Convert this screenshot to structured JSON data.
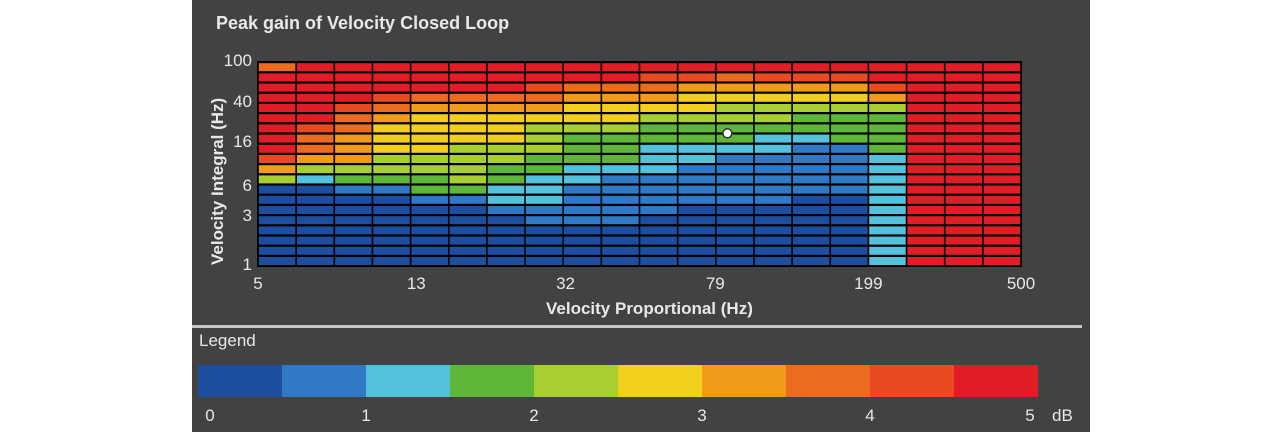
{
  "title": "Peak gain of Velocity Closed Loop",
  "legend_title": "Legend",
  "chart_data": {
    "type": "heatmap",
    "title": "Peak gain of Velocity Closed Loop",
    "xlabel": "Velocity Proportional (Hz)",
    "ylabel": "Velocity Integral (Hz)",
    "x_scale": "log",
    "y_scale": "log",
    "xlim": [
      5,
      500
    ],
    "ylim": [
      1,
      100
    ],
    "x_ticks": [
      "5",
      "13",
      "32",
      "79",
      "199",
      "500"
    ],
    "y_ticks": [
      "1",
      "3",
      "6",
      "16",
      "40",
      "100"
    ],
    "grid": true,
    "n_cols": 20,
    "n_rows": 20,
    "colorbar": {
      "label": "dB",
      "range": [
        0,
        5
      ],
      "ticks": [
        "0",
        "1",
        "2",
        "3",
        "4",
        "5"
      ],
      "colors": [
        "#1e4ea0",
        "#2f79c6",
        "#55c2dd",
        "#5fb73a",
        "#a8cf31",
        "#f2cf1d",
        "#f29a1c",
        "#ec6c1f",
        "#ea4a22",
        "#e11e27"
      ]
    },
    "column_profiles": [
      [
        0,
        0,
        0,
        0,
        0,
        0,
        0,
        0,
        4,
        6,
        8,
        9,
        9,
        9,
        9,
        9,
        9,
        9,
        9,
        7
      ],
      [
        0,
        0,
        0,
        0,
        0,
        0,
        0,
        0,
        2,
        4,
        6,
        7,
        7,
        8,
        9,
        9,
        9,
        9,
        9,
        9
      ],
      [
        0,
        0,
        0,
        0,
        0,
        0,
        0,
        1,
        3,
        4,
        6,
        6,
        6,
        7,
        7,
        8,
        9,
        9,
        9,
        9
      ],
      [
        0,
        0,
        0,
        0,
        0,
        0,
        0,
        1,
        3,
        4,
        4,
        5,
        5,
        5,
        6,
        7,
        8,
        9,
        9,
        9
      ],
      [
        0,
        0,
        0,
        0,
        0,
        0,
        1,
        3,
        3,
        4,
        4,
        5,
        5,
        5,
        5,
        6,
        7,
        9,
        9,
        9
      ],
      [
        0,
        0,
        0,
        0,
        0,
        0,
        1,
        3,
        4,
        4,
        4,
        4,
        5,
        5,
        5,
        6,
        7,
        9,
        9,
        9
      ],
      [
        0,
        0,
        0,
        0,
        0,
        1,
        2,
        2,
        3,
        3,
        4,
        4,
        5,
        5,
        5,
        6,
        7,
        9,
        9,
        9
      ],
      [
        0,
        0,
        0,
        0,
        1,
        1,
        2,
        2,
        2,
        3,
        3,
        4,
        4,
        4,
        5,
        6,
        7,
        8,
        9,
        9
      ],
      [
        0,
        0,
        0,
        0,
        1,
        1,
        1,
        1,
        2,
        2,
        3,
        3,
        3,
        4,
        5,
        5,
        6,
        7,
        9,
        9
      ],
      [
        0,
        0,
        0,
        0,
        1,
        1,
        1,
        1,
        1,
        2,
        3,
        3,
        3,
        4,
        5,
        5,
        6,
        7,
        9,
        9
      ],
      [
        0,
        0,
        0,
        0,
        0,
        1,
        1,
        1,
        1,
        2,
        2,
        2,
        3,
        3,
        4,
        5,
        6,
        7,
        8,
        9
      ],
      [
        0,
        0,
        0,
        0,
        0,
        0,
        1,
        1,
        1,
        1,
        2,
        2,
        3,
        3,
        4,
        5,
        5,
        6,
        8,
        9
      ],
      [
        0,
        0,
        0,
        0,
        0,
        0,
        1,
        1,
        1,
        1,
        1,
        2,
        3,
        3,
        4,
        4,
        5,
        6,
        7,
        9
      ],
      [
        0,
        0,
        0,
        0,
        0,
        0,
        1,
        1,
        1,
        1,
        1,
        2,
        2,
        3,
        4,
        4,
        5,
        6,
        8,
        9
      ],
      [
        0,
        0,
        0,
        0,
        0,
        0,
        0,
        1,
        1,
        1,
        1,
        1,
        2,
        3,
        3,
        4,
        5,
        6,
        8,
        9
      ],
      [
        0,
        0,
        0,
        0,
        0,
        0,
        0,
        1,
        1,
        1,
        1,
        1,
        3,
        3,
        3,
        4,
        5,
        6,
        8,
        9
      ],
      [
        2,
        2,
        2,
        2,
        2,
        2,
        2,
        2,
        2,
        2,
        2,
        3,
        3,
        3,
        3,
        4,
        6,
        8,
        9,
        9
      ],
      [
        9,
        9,
        9,
        9,
        9,
        9,
        9,
        9,
        9,
        9,
        9,
        9,
        9,
        9,
        9,
        9,
        9,
        9,
        9,
        9
      ],
      [
        9,
        9,
        9,
        9,
        9,
        9,
        9,
        9,
        9,
        9,
        9,
        9,
        9,
        9,
        9,
        9,
        9,
        9,
        9,
        9
      ],
      [
        9,
        9,
        9,
        9,
        9,
        9,
        9,
        9,
        9,
        9,
        9,
        9,
        9,
        9,
        9,
        9,
        9,
        9,
        9,
        9
      ]
    ],
    "marker": {
      "x": 85,
      "y": 20
    }
  }
}
